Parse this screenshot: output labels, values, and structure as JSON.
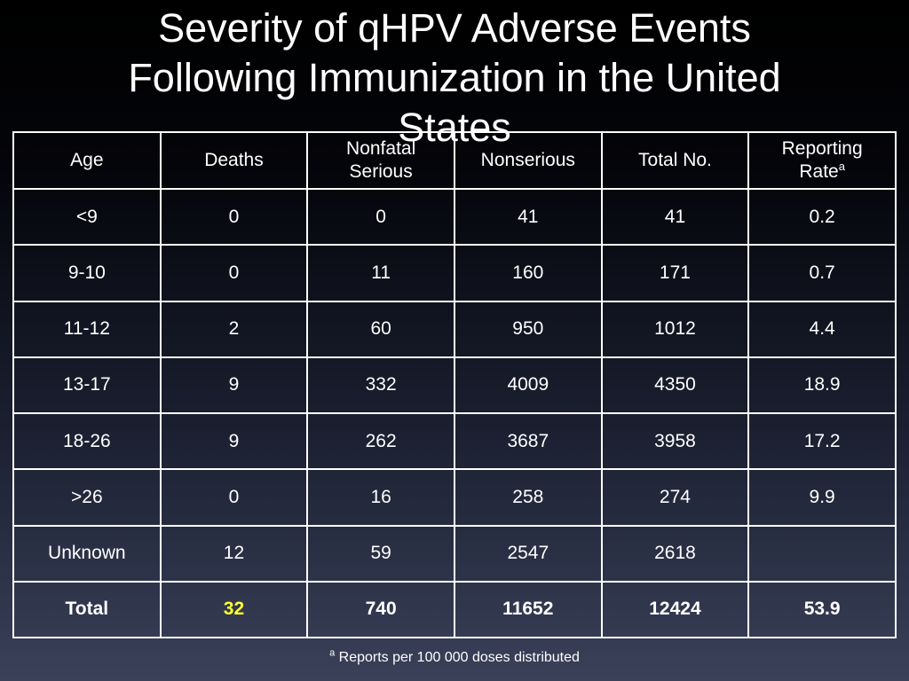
{
  "title": {
    "lines": [
      "Severity of qHPV Adverse Events",
      "Following Immunization in the United",
      "States"
    ]
  },
  "table": {
    "headers": [
      {
        "lines": [
          "Age"
        ],
        "sup": ""
      },
      {
        "lines": [
          "Deaths"
        ],
        "sup": ""
      },
      {
        "lines": [
          "Nonfatal",
          "Serious"
        ],
        "sup": ""
      },
      {
        "lines": [
          "Nonserious"
        ],
        "sup": ""
      },
      {
        "lines": [
          "Total No."
        ],
        "sup": ""
      },
      {
        "lines": [
          "Reporting",
          "Rate"
        ],
        "sup": "a"
      }
    ],
    "rows": [
      [
        "<9",
        "0",
        "0",
        "41",
        "41",
        "0.2"
      ],
      [
        "9-10",
        "0",
        "11",
        "160",
        "171",
        "0.7"
      ],
      [
        "11-12",
        "2",
        "60",
        "950",
        "1012",
        "4.4"
      ],
      [
        "13-17",
        "9",
        "332",
        "4009",
        "4350",
        "18.9"
      ],
      [
        "18-26",
        "9",
        "262",
        "3687",
        "3958",
        "17.2"
      ],
      [
        ">26",
        "0",
        "16",
        "258",
        "274",
        "9.9"
      ],
      [
        "Unknown",
        "12",
        "59",
        "2547",
        "2618",
        ""
      ]
    ],
    "total": [
      "Total",
      "32",
      "740",
      "11652",
      "12424",
      "53.9"
    ]
  },
  "footnote": {
    "marker": "a",
    "text": "Reports per 100 000 doses distributed"
  },
  "colors": {
    "highlight": "#ffff33",
    "text": "#ffffff"
  }
}
